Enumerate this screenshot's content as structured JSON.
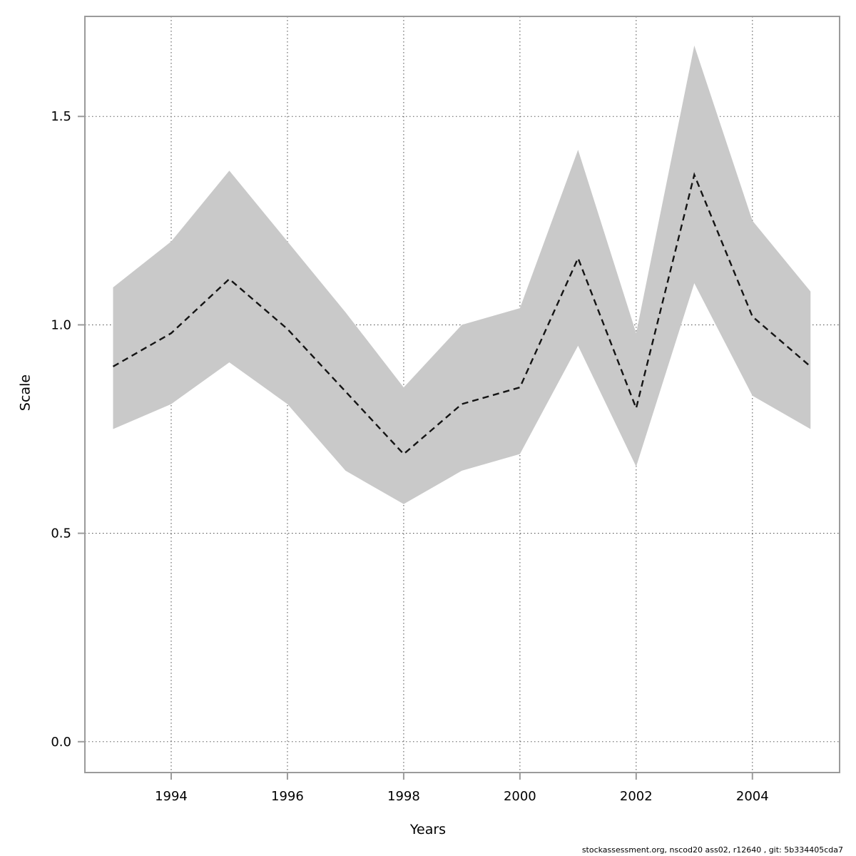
{
  "chart_data": {
    "type": "line",
    "title": "",
    "xlabel": "Years",
    "ylabel": "Scale",
    "x": [
      1993,
      1994,
      1995,
      1996,
      1997,
      1998,
      1999,
      2000,
      2001,
      2002,
      2003,
      2004,
      2005
    ],
    "series": [
      {
        "name": "estimate",
        "style": "dashed",
        "values": [
          0.9,
          0.98,
          1.11,
          0.99,
          0.84,
          0.69,
          0.81,
          0.85,
          1.16,
          0.8,
          1.36,
          1.02,
          0.9
        ]
      },
      {
        "name": "ci-lower",
        "style": "band-edge",
        "values": [
          0.75,
          0.81,
          0.91,
          0.81,
          0.65,
          0.57,
          0.65,
          0.69,
          0.95,
          0.66,
          1.1,
          0.83,
          0.75
        ]
      },
      {
        "name": "ci-upper",
        "style": "band-edge",
        "values": [
          1.09,
          1.2,
          1.37,
          1.2,
          1.03,
          0.85,
          1.0,
          1.04,
          1.42,
          0.98,
          1.67,
          1.25,
          1.08
        ]
      }
    ],
    "xlim": [
      1992.515,
      2005.5
    ],
    "ylim": [
      -0.074,
      1.74
    ],
    "x_ticks": [
      1994,
      1996,
      1998,
      2000,
      2002,
      2004
    ],
    "x_tick_labels": [
      "1994",
      "1996",
      "1998",
      "2000",
      "2002",
      "2004"
    ],
    "y_ticks": [
      0.0,
      0.5,
      1.0,
      1.5
    ],
    "y_tick_labels": [
      "0.0",
      "0.5",
      "1.0",
      "1.5"
    ],
    "grid": "dotted, both axes at tick positions",
    "legend_position": "none"
  },
  "footer": {
    "text": "stockassessment.org, nscod20 ass02, r12640 , git: 5b334405cda7"
  },
  "colors": {
    "band": "#c9c9c9",
    "line": "#141414",
    "grid": "#5a5a5a",
    "frame": "#9b9b9b",
    "text": "#000000",
    "background": "#ffffff"
  }
}
